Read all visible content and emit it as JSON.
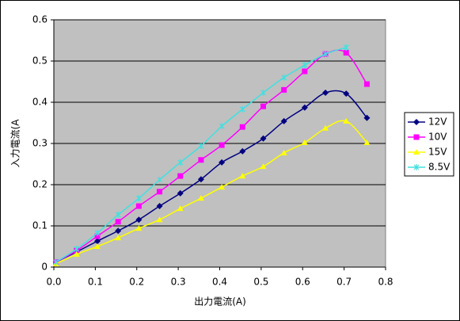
{
  "chart_data": {
    "type": "line",
    "x_label": "出力電流(A)",
    "y_label": "入力電流(A",
    "x": [
      0.005,
      0.055,
      0.105,
      0.155,
      0.205,
      0.255,
      0.305,
      0.355,
      0.405,
      0.455,
      0.505,
      0.555,
      0.605,
      0.655,
      0.705,
      0.755
    ],
    "series": [
      {
        "name": "12V",
        "color": "#000080",
        "marker": "diamond",
        "values": [
          0.012,
          0.037,
          0.063,
          0.088,
          0.115,
          0.148,
          0.179,
          0.213,
          0.254,
          0.281,
          0.312,
          0.354,
          0.387,
          0.423,
          0.421,
          0.362
        ]
      },
      {
        "name": "10V",
        "color": "#ff00ff",
        "marker": "square",
        "values": [
          0.012,
          0.04,
          0.075,
          0.11,
          0.148,
          0.183,
          0.221,
          0.26,
          0.296,
          0.34,
          0.39,
          0.43,
          0.475,
          0.517,
          0.52,
          0.444
        ]
      },
      {
        "name": "15V",
        "color": "#ffff00",
        "marker": "triangle",
        "values": [
          0.008,
          0.031,
          0.05,
          0.071,
          0.094,
          0.115,
          0.142,
          0.167,
          0.194,
          0.221,
          0.244,
          0.277,
          0.302,
          0.337,
          0.354,
          0.302
        ]
      },
      {
        "name": "8.5V",
        "color": "#40e0e0",
        "marker": "star",
        "values": [
          0.012,
          0.044,
          0.083,
          0.127,
          0.167,
          0.212,
          0.254,
          0.294,
          0.342,
          0.383,
          0.423,
          0.46,
          0.49,
          0.517,
          0.533,
          null
        ]
      }
    ],
    "xlim": [
      0,
      0.8
    ],
    "xticks": [
      {
        "value": 0,
        "label": "0.0"
      },
      0.1,
      0.2,
      0.3,
      0.4,
      0.5,
      0.6,
      0.7,
      0.8
    ],
    "ylim": [
      0,
      0.6
    ],
    "yticks": [
      0,
      0.1,
      0.2,
      0.3,
      0.4,
      0.5,
      0.6
    ],
    "grid": true,
    "legend": "right",
    "plot_background": "#c0c0c0"
  }
}
